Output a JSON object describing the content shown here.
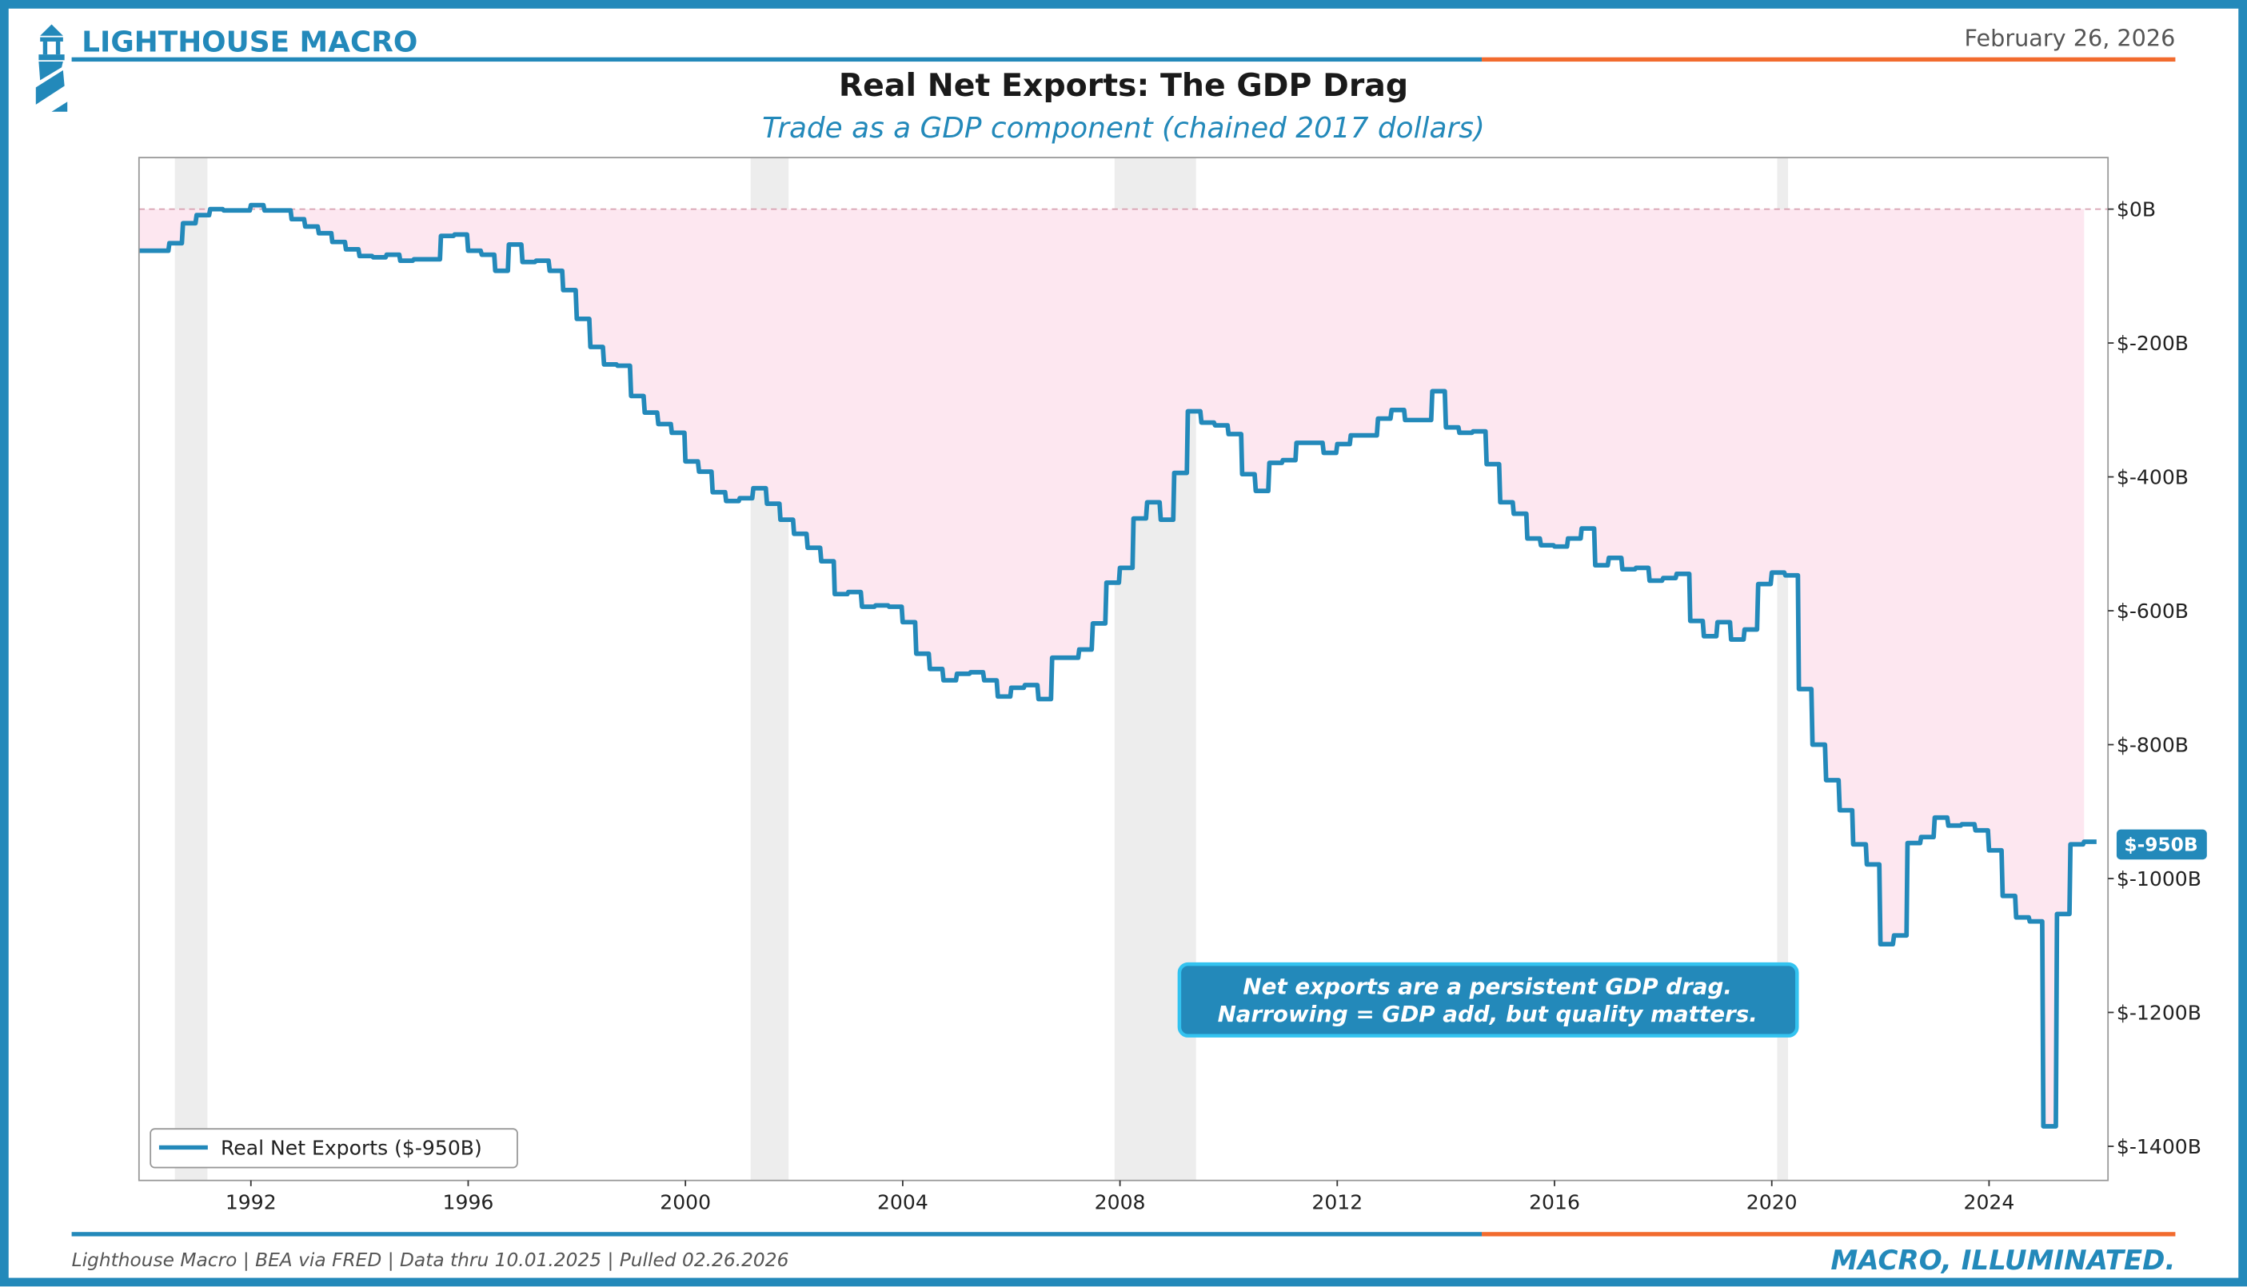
{
  "header": {
    "brand": "LIGHTHOUSE MACRO",
    "date": "February 26, 2026"
  },
  "footer": {
    "source": "Lighthouse Macro | BEA via FRED | Data thru 10.01.2025 | Pulled 02.26.2026",
    "tagline": "MACRO, ILLUMINATED."
  },
  "colors": {
    "brand": "#2389BA",
    "accent": "#F26B2E",
    "fill": "#FDE7F0",
    "recession": "#E8E8E8"
  },
  "chart_data": {
    "type": "line",
    "title": "Real Net Exports: The GDP Drag",
    "subtitle": "Trade as a GDP component (chained 2017 dollars)",
    "xlabel": "",
    "ylabel": "",
    "xlim": [
      1989.94,
      2026.19
    ],
    "ylim": [
      -1451,
      77
    ],
    "x_ticks": [
      1992,
      1996,
      2000,
      2004,
      2008,
      2012,
      2016,
      2020,
      2024
    ],
    "y_ticks": [
      0,
      -200,
      -400,
      -600,
      -800,
      -1000,
      -1200,
      -1400
    ],
    "y_tick_labels": [
      "$0B",
      "$-200B",
      "$-400B",
      "$-600B",
      "$-800B",
      "$-1000B",
      "$-1200B",
      "$-1400B"
    ],
    "legend": {
      "label": "Real Net Exports ($-950B)",
      "placement": "bottom-left"
    },
    "last_value_label": "$-950B",
    "annotation": [
      "Net exports are a persistent GDP drag.",
      "Narrowing = GDP add, but quality matters."
    ],
    "recessions": [
      [
        1990.6,
        1991.2
      ],
      [
        2001.2,
        2001.9
      ],
      [
        2007.9,
        2009.4
      ],
      [
        2020.1,
        2020.3
      ]
    ],
    "reference_line": 0,
    "series": [
      {
        "name": "Real Net Exports",
        "x_start": 1990.0,
        "x_step": 0.25,
        "values": [
          -62,
          -62,
          -51,
          -21,
          -9,
          0,
          -2,
          -2,
          6,
          -2,
          -2,
          -15,
          -26,
          -36,
          -49,
          -60,
          -70,
          -72,
          -68,
          -77,
          -75,
          -75,
          -40,
          -38,
          -62,
          -68,
          -92,
          -53,
          -79,
          -77,
          -92,
          -121,
          -164,
          -206,
          -232,
          -234,
          -279,
          -304,
          -321,
          -334,
          -377,
          -392,
          -423,
          -436,
          -432,
          -417,
          -440,
          -464,
          -485,
          -506,
          -526,
          -575,
          -572,
          -594,
          -592,
          -594,
          -617,
          -664,
          -687,
          -704,
          -694,
          -692,
          -704,
          -728,
          -715,
          -711,
          -732,
          -670,
          -670,
          -658,
          -619,
          -558,
          -536,
          -462,
          -438,
          -464,
          -394,
          -302,
          -319,
          -323,
          -336,
          -396,
          -421,
          -379,
          -375,
          -349,
          -349,
          -364,
          -351,
          -338,
          -338,
          -313,
          -300,
          -315,
          -315,
          -272,
          -326,
          -334,
          -332,
          -381,
          -438,
          -455,
          -492,
          -502,
          -504,
          -492,
          -477,
          -532,
          -521,
          -538,
          -536,
          -555,
          -551,
          -545,
          -615,
          -638,
          -617,
          -643,
          -628,
          -560,
          -543,
          -547,
          -717,
          -800,
          -853,
          -898,
          -949,
          -979,
          -1098,
          -1085,
          -947,
          -938,
          -909,
          -921,
          -919,
          -928,
          -958,
          -1026,
          -1058,
          -1064,
          -1370,
          -1053,
          -949,
          -945
        ]
      }
    ]
  }
}
